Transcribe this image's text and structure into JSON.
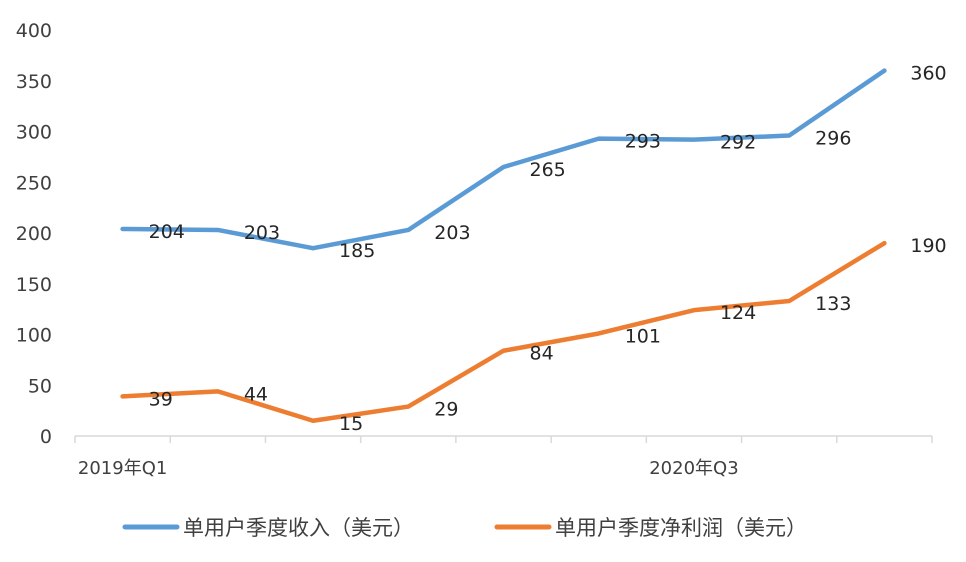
{
  "chart_data": {
    "type": "line",
    "title": "",
    "xlabel": "",
    "ylabel": "",
    "ylim": [
      0,
      400
    ],
    "yticks": [
      0,
      50,
      100,
      150,
      200,
      250,
      300,
      350,
      400
    ],
    "grid": false,
    "legend_position": "bottom",
    "x_tick_labels": [
      "2019年Q1",
      "",
      "",
      "",
      "",
      "",
      "2020年Q3",
      "",
      ""
    ],
    "series": [
      {
        "name": "单用户季度收入（美元）",
        "color": "#5b9bd5",
        "values": [
          204,
          203,
          185,
          203,
          265,
          293,
          292,
          296,
          360
        ]
      },
      {
        "name": "单用户季度净利润（美元）",
        "color": "#ed7d31",
        "values": [
          39,
          44,
          15,
          29,
          84,
          101,
          124,
          133,
          190
        ]
      }
    ]
  }
}
